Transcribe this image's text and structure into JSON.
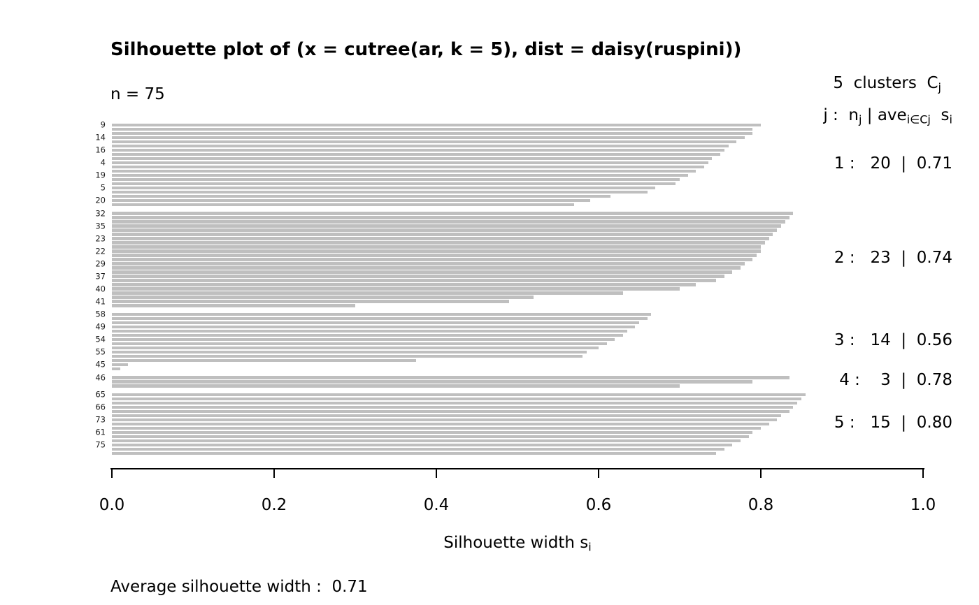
{
  "title": "Silhouette plot of (x = cutree(ar, k = 5), dist = daisy(ruspini))",
  "n_label": "n = 75",
  "x_axis": {
    "label_main": "Silhouette width s",
    "label_sub": "i"
  },
  "footer": {
    "text": "Average silhouette width :  0.71"
  },
  "legend": {
    "header_main": "5  clusters  C",
    "header_sub": "j",
    "formula": {
      "p1": "j :  n",
      "s1": "j",
      "p2": " | ave",
      "s2": "i∈Cj",
      "p3": "  s",
      "s3": "i"
    },
    "cluster_lines": [
      "1 :   20  |  0.71",
      "2 :   23  |  0.74",
      "3 :   14  |  0.56",
      "4 :    3  |  0.78",
      "5 :   15  |  0.80"
    ]
  },
  "chart_data": {
    "type": "bar",
    "orientation": "horizontal",
    "title": "Silhouette plot of (x = cutree(ar, k = 5), dist = daisy(ruspini))",
    "xlabel": "Silhouette width si",
    "n": 75,
    "k": 5,
    "average_silhouette_width": 0.71,
    "xlim": [
      0,
      1
    ],
    "x_ticks": [
      "0.0",
      "0.2",
      "0.4",
      "0.6",
      "0.8",
      "1.0"
    ],
    "bar_color": "#bfbfbf",
    "clusters": [
      {
        "j": 1,
        "size": 20,
        "ave_width": 0.71,
        "values": [
          0.8,
          0.79,
          0.79,
          0.78,
          0.77,
          0.76,
          0.755,
          0.75,
          0.74,
          0.735,
          0.73,
          0.72,
          0.71,
          0.7,
          0.695,
          0.67,
          0.66,
          0.615,
          0.59,
          0.57
        ],
        "row_labels": [
          "9",
          "",
          "",
          "14",
          "",
          "",
          "16",
          "",
          "",
          "4",
          "",
          "",
          "19",
          "",
          "",
          "5",
          "",
          "",
          "20",
          ""
        ]
      },
      {
        "j": 2,
        "size": 23,
        "ave_width": 0.74,
        "values": [
          0.84,
          0.835,
          0.83,
          0.825,
          0.82,
          0.815,
          0.81,
          0.805,
          0.8,
          0.8,
          0.795,
          0.79,
          0.78,
          0.775,
          0.765,
          0.755,
          0.745,
          0.72,
          0.7,
          0.63,
          0.52,
          0.49,
          0.3
        ],
        "row_labels": [
          "32",
          "",
          "",
          "35",
          "",
          "",
          "23",
          "",
          "",
          "22",
          "",
          "",
          "29",
          "",
          "",
          "37",
          "",
          "",
          "40",
          "",
          "",
          "41",
          ""
        ]
      },
      {
        "j": 3,
        "size": 14,
        "ave_width": 0.56,
        "values": [
          0.665,
          0.66,
          0.65,
          0.645,
          0.635,
          0.63,
          0.62,
          0.61,
          0.6,
          0.585,
          0.58,
          0.375,
          0.02,
          0.01
        ],
        "row_labels": [
          "58",
          "",
          "",
          "49",
          "",
          "",
          "54",
          "",
          "",
          "55",
          "",
          "",
          "45",
          ""
        ]
      },
      {
        "j": 4,
        "size": 3,
        "ave_width": 0.78,
        "values": [
          0.835,
          0.79,
          0.7
        ],
        "row_labels": [
          "46",
          "",
          ""
        ]
      },
      {
        "j": 5,
        "size": 15,
        "ave_width": 0.8,
        "values": [
          0.855,
          0.85,
          0.845,
          0.84,
          0.835,
          0.825,
          0.82,
          0.81,
          0.8,
          0.79,
          0.785,
          0.775,
          0.765,
          0.755,
          0.745
        ],
        "row_labels": [
          "65",
          "",
          "",
          "66",
          "",
          "",
          "73",
          "",
          "",
          "61",
          "",
          "",
          "75",
          "",
          ""
        ]
      }
    ]
  }
}
